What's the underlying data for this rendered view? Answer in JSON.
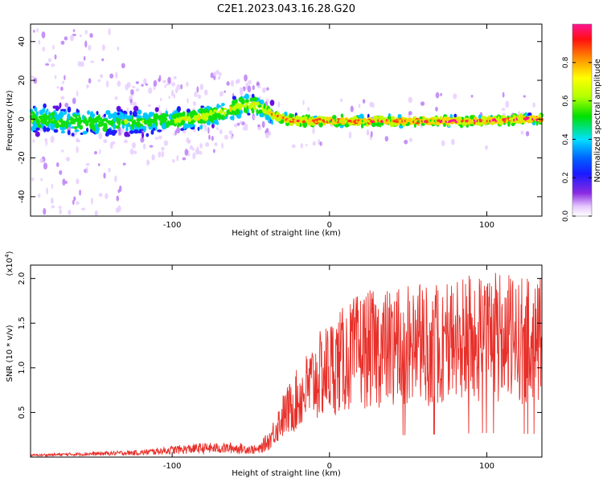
{
  "title": "C2E1.2023.043.16.28.G20",
  "chart_data": [
    {
      "type": "heatmap",
      "name": "spectrogram",
      "xlabel": "Height of straight line (km)",
      "ylabel": "Frequency (Hz)",
      "xlim": [
        -190,
        135
      ],
      "ylim": [
        -50,
        49
      ],
      "xticks": [
        -100,
        0,
        100
      ],
      "yticks": [
        -40,
        -20,
        0,
        20,
        40
      ],
      "ridge": {
        "x": [
          -190,
          -150,
          -110,
          -90,
          -75,
          -60,
          -50,
          -45,
          -40,
          -35,
          -28,
          -20,
          -10,
          0,
          10,
          30,
          60,
          90,
          120,
          135
        ],
        "freq": [
          0,
          -2,
          -1,
          0,
          2,
          6,
          8,
          6,
          4,
          2,
          0,
          -1,
          -1,
          -1,
          -1,
          -1,
          -1,
          -1,
          0,
          0
        ]
      },
      "colorbar": {
        "label": "Normalized spectral amplitude",
        "range": [
          0.0,
          1.0
        ],
        "ticks": [
          0.0,
          0.2,
          0.4,
          0.6,
          0.8
        ],
        "tick_labels": [
          "0.0",
          "0.2",
          "0.4",
          "0.6",
          "0.8"
        ]
      }
    },
    {
      "type": "line",
      "name": "snr",
      "xlabel": "Height of straight line (km)",
      "ylabel": "SNR (10 * v/v)",
      "y_scale_note": "(x10",
      "y_scale_exp": "4",
      "xlim": [
        -190,
        135
      ],
      "ylim": [
        0.0,
        2.15
      ],
      "xticks": [
        -100,
        0,
        100
      ],
      "yticks": [
        0.5,
        1.0,
        1.5,
        2.0
      ],
      "ytick_labels": [
        "0.5",
        "1.0",
        "1.5",
        "2.0"
      ],
      "color": "#e8302a",
      "envelope": {
        "x": [
          -190,
          -120,
          -100,
          -80,
          -60,
          -45,
          -38,
          -30,
          -20,
          -10,
          0,
          10,
          20,
          40,
          60,
          80,
          100,
          120,
          135
        ],
        "y": [
          0.02,
          0.05,
          0.08,
          0.1,
          0.1,
          0.08,
          0.2,
          0.45,
          0.65,
          0.85,
          1.0,
          1.1,
          1.2,
          1.22,
          1.25,
          1.3,
          1.35,
          1.3,
          1.3
        ]
      }
    }
  ]
}
